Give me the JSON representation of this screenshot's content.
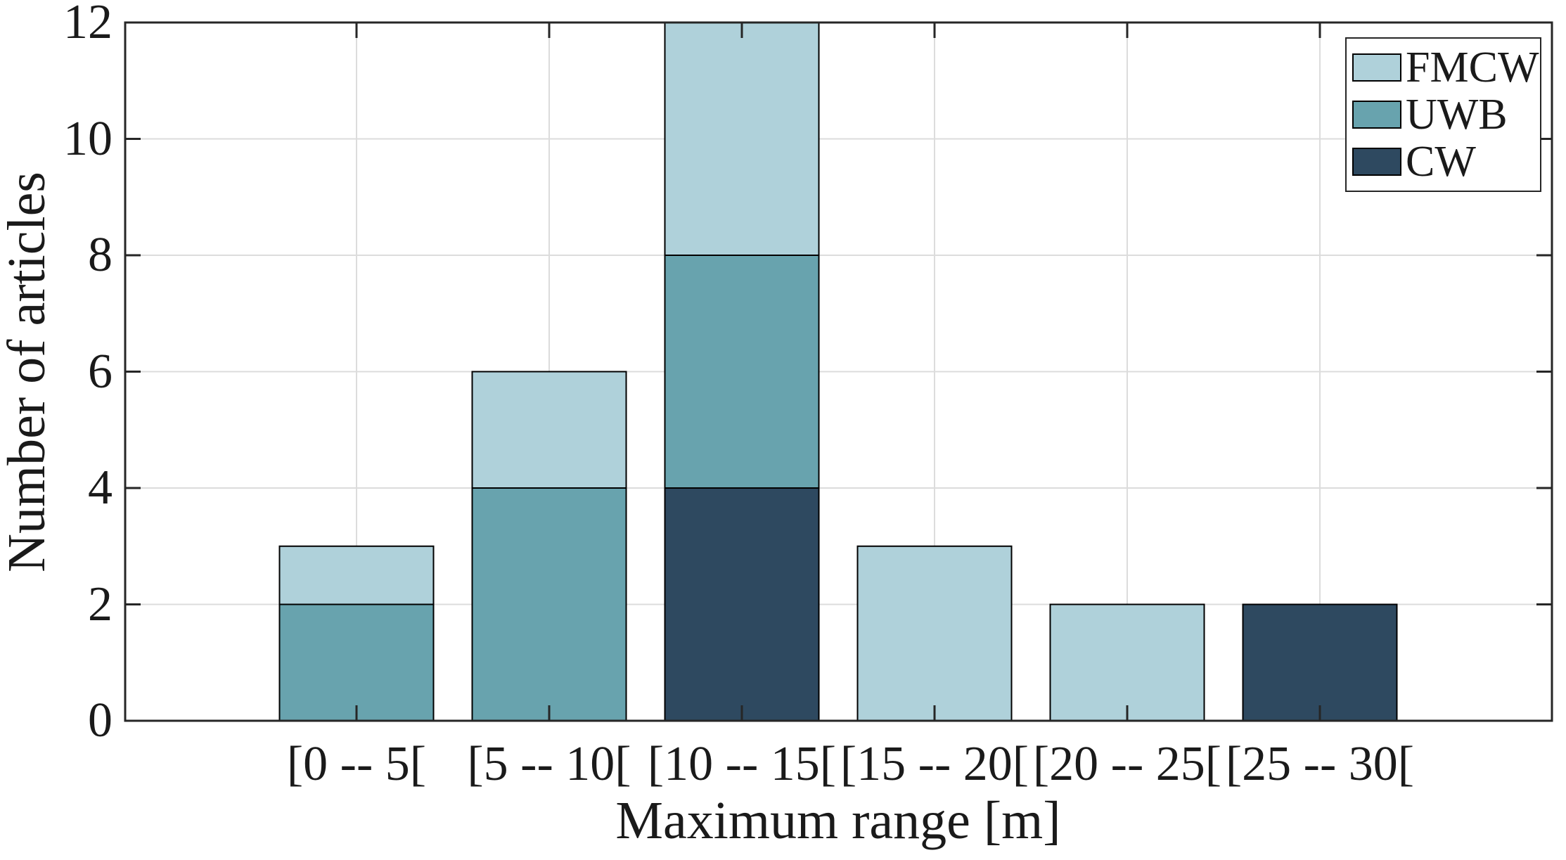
{
  "chart_data": {
    "type": "bar",
    "stacked": true,
    "title": "",
    "categories": [
      "[0 -- 5[",
      "[5 -- 10[",
      "[10 -- 15[",
      "[15 -- 20[",
      "[20 -- 25[",
      "[25 -- 30["
    ],
    "series": [
      {
        "name": "CW",
        "color": "#2e4960",
        "values": [
          0,
          0,
          4,
          0,
          0,
          2
        ]
      },
      {
        "name": "UWB",
        "color": "#68a3ae",
        "values": [
          2,
          4,
          4,
          0,
          0,
          0
        ]
      },
      {
        "name": "FMCW",
        "color": "#afd1da",
        "values": [
          1,
          2,
          4,
          3,
          2,
          0
        ]
      }
    ],
    "stack_order": "bottom-to-top: CW, UWB, FMCW",
    "totals": [
      3,
      6,
      12,
      3,
      2,
      2
    ],
    "xlabel": "Maximum range [m]",
    "ylabel": "Number of articles",
    "ylim": [
      0,
      12
    ],
    "yticks": [
      0,
      2,
      4,
      6,
      8,
      10,
      12
    ],
    "grid": true,
    "legend": {
      "position": "top-right",
      "entries": [
        "FMCW",
        "UWB",
        "CW"
      ]
    }
  },
  "axes": {
    "xlabel": "Maximum range [m]",
    "ylabel": "Number of articles"
  },
  "legend": {
    "entries": [
      {
        "label": "FMCW",
        "color": "#afd1da"
      },
      {
        "label": "UWB",
        "color": "#68a3ae"
      },
      {
        "label": "CW",
        "color": "#2e4960"
      }
    ]
  },
  "colors": {
    "axis": "#262626",
    "grid": "#dcdcdc",
    "bar_edge": "#000000",
    "background": "#ffffff",
    "text": "#1a1a1a"
  }
}
